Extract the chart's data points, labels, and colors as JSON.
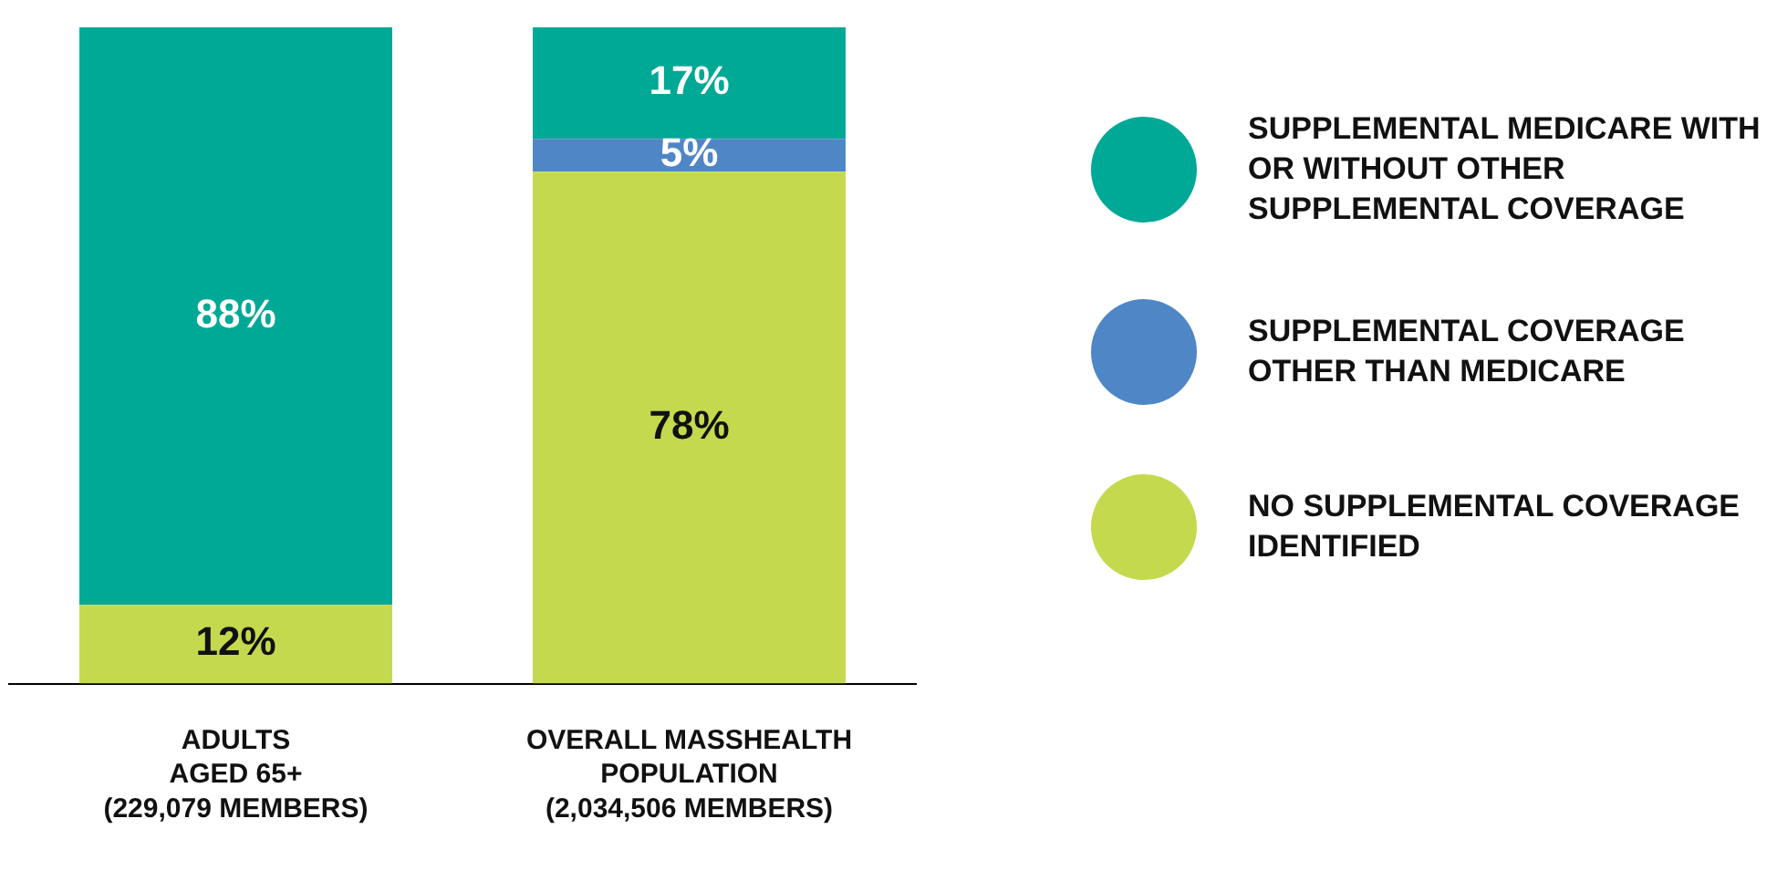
{
  "chart_data": {
    "type": "bar",
    "stacked": true,
    "legend": "right",
    "grid": false,
    "categories": [
      "ADULTS\nAGED 65+\n(229,079 MEMBERS)",
      "OVERALL MASSHEALTH\nPOPULATION\n(2,034,506 MEMBERS)"
    ],
    "series": [
      {
        "name": "NO SUPPLEMENTAL COVERAGE IDENTIFIED",
        "color": "#c4d94e",
        "values": [
          12,
          78
        ],
        "value_labels": [
          "12%",
          "78%"
        ]
      },
      {
        "name": "SUPPLEMENTAL COVERAGE OTHER THAN MEDICARE",
        "color": "#4f86c6",
        "values": [
          null,
          5
        ],
        "value_labels": [
          null,
          "5%"
        ]
      },
      {
        "name": "SUPPLEMENTAL MEDICARE WITH OR WITHOUT OTHER SUPPLEMENTAL COVERAGE",
        "color": "#00a896",
        "values": [
          88,
          17
        ],
        "value_labels": [
          "88%",
          "17%"
        ]
      }
    ]
  }
}
